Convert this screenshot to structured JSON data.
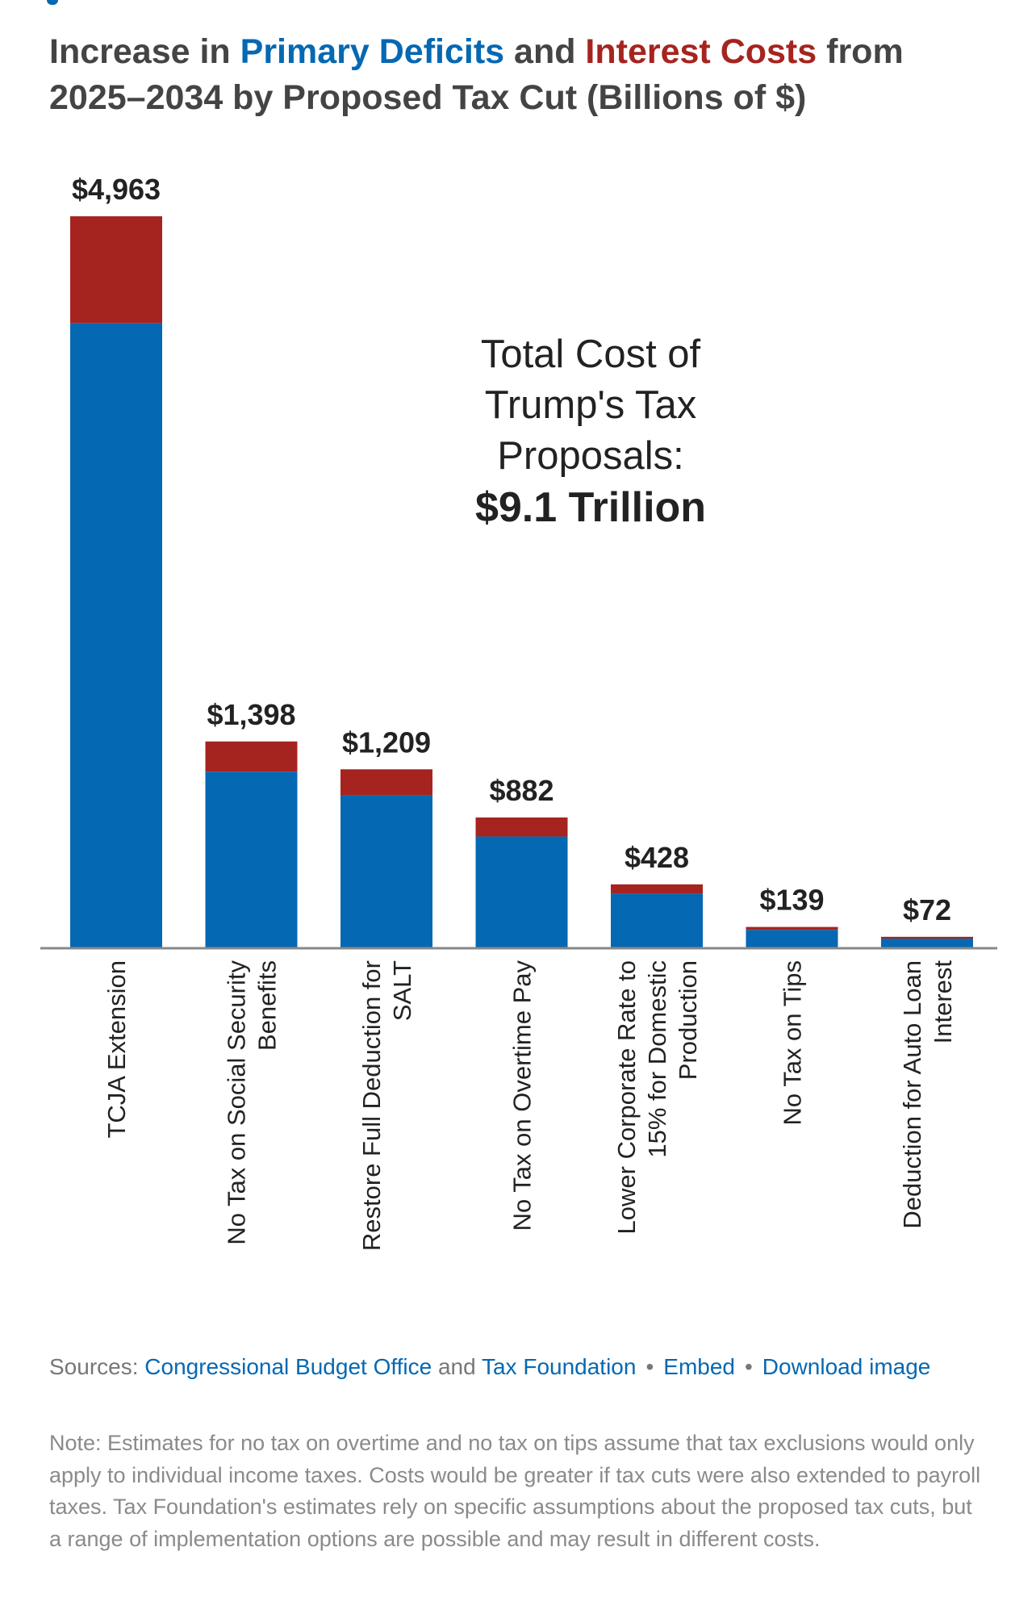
{
  "title": {
    "part1": "Increase in ",
    "primary": "Primary Deficits",
    "part2": " and ",
    "interest": "Interest Costs",
    "part3": " from 2025–2034 by Proposed Tax Cut (Billions of $)"
  },
  "colors": {
    "primary": "#0568b3",
    "interest": "#a6241f",
    "axis": "#888888",
    "text": "#222222"
  },
  "annotation": {
    "lines": [
      "Total Cost of",
      "Trump's Tax",
      "Proposals:"
    ],
    "emphasis": "$9.1 Trillion"
  },
  "chart_data": {
    "type": "bar",
    "stacked": true,
    "categories": [
      [
        "TCJA Extension"
      ],
      [
        "No Tax on Social Security",
        "Benefits"
      ],
      [
        "Restore Full Deduction for",
        "SALT"
      ],
      [
        "No Tax on Overtime Pay"
      ],
      [
        "Lower Corporate Rate to",
        "15% for Domestic",
        "Production"
      ],
      [
        "No Tax on Tips"
      ],
      [
        "Deduction for Auto Loan",
        "Interest"
      ]
    ],
    "series": [
      {
        "name": "Primary Deficits",
        "values": [
          4238,
          1193,
          1032,
          753,
          365,
          119,
          60
        ]
      },
      {
        "name": "Interest Costs",
        "values": [
          725,
          205,
          177,
          129,
          63,
          20,
          12
        ]
      }
    ],
    "totals": [
      4963,
      1398,
      1209,
      882,
      428,
      139,
      72
    ],
    "total_labels": [
      "$4,963",
      "$1,398",
      "$1,209",
      "$882",
      "$428",
      "$139",
      "$72"
    ],
    "ylim": [
      0,
      5000
    ],
    "grid": false,
    "legend": "none"
  },
  "footer": {
    "sources_label": "Sources:",
    "link_cbo": "Congressional Budget Office",
    "and": "and",
    "link_tf": "Tax Foundation",
    "bullet": "•",
    "embed": "Embed",
    "download": "Download image",
    "note": "Note: Estimates for no tax on overtime and no tax on tips assume that tax exclusions would only apply to individual income taxes. Costs would be greater if tax cuts were also extended to payroll taxes. Tax Foundation's estimates rely on specific assumptions about the proposed tax cuts, but a range of implementation options are possible and may result in different costs."
  }
}
